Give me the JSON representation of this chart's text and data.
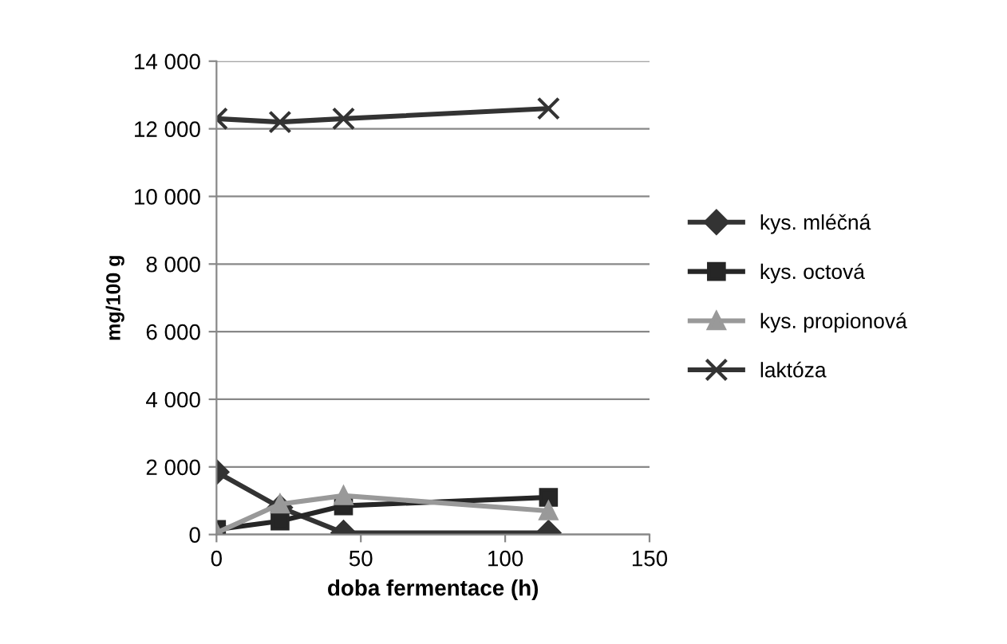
{
  "chart_data": {
    "type": "line",
    "xlabel": "doba fermentace (h)",
    "ylabel": "mg/100 g",
    "x": [
      0,
      22,
      44,
      115
    ],
    "series": [
      {
        "name": "kys. mléčná",
        "color": "#333333",
        "marker": "diamond",
        "values": [
          1850,
          800,
          50,
          50
        ]
      },
      {
        "name": "kys. octová",
        "color": "#262626",
        "marker": "square",
        "values": [
          150,
          400,
          850,
          1100
        ]
      },
      {
        "name": "kys. propionová",
        "color": "#999999",
        "marker": "triangle",
        "values": [
          50,
          900,
          1150,
          700
        ]
      },
      {
        "name": "laktóza",
        "color": "#333333",
        "marker": "cross",
        "values": [
          12300,
          12200,
          12300,
          12600
        ]
      }
    ],
    "xlim": [
      0,
      150
    ],
    "xticks": [
      0,
      50,
      100,
      150
    ],
    "ylim": [
      0,
      14000
    ],
    "yticks": [
      0,
      {
        "value": 2000,
        "label": "2 000"
      },
      {
        "value": 4000,
        "label": "4 000"
      },
      {
        "value": 6000,
        "label": "6 000"
      },
      {
        "value": 8000,
        "label": "8 000"
      },
      {
        "value": 10000,
        "label": "10 000"
      },
      {
        "value": 12000,
        "label": "12 000"
      },
      {
        "value": 14000,
        "label": "14 000"
      }
    ],
    "grid": "y",
    "legend": "right",
    "line_style": "solid"
  }
}
